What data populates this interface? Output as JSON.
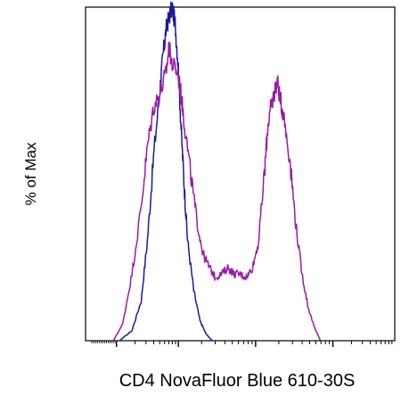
{
  "chart_data": {
    "type": "histogram",
    "title": "",
    "xlabel": "CD4 NovaFluor Blue 610-30S",
    "ylabel": "% of Max",
    "xlim": [
      0,
      1
    ],
    "ylim": [
      0,
      100
    ],
    "x_scale": "biexponential",
    "x_tick_labels": [],
    "y_tick_labels": [],
    "grid": false,
    "legend": "none",
    "series": [
      {
        "color": "#1a1a9a",
        "x": [
          0.11,
          0.15,
          0.18,
          0.2,
          0.22,
          0.24,
          0.25,
          0.26,
          0.27,
          0.28,
          0.29,
          0.3,
          0.31,
          0.32,
          0.33,
          0.35,
          0.37,
          0.39,
          0.41
        ],
        "y": [
          0,
          3,
          12,
          30,
          55,
          75,
          85,
          93,
          97,
          100,
          95,
          82,
          62,
          45,
          30,
          15,
          6,
          2,
          0
        ]
      },
      {
        "color": "#9a1aa6",
        "x": [
          0.09,
          0.12,
          0.15,
          0.18,
          0.2,
          0.22,
          0.24,
          0.26,
          0.27,
          0.28,
          0.3,
          0.31,
          0.32,
          0.34,
          0.36,
          0.38,
          0.4,
          0.42,
          0.44,
          0.46,
          0.48,
          0.5,
          0.52,
          0.54,
          0.56,
          0.58,
          0.59,
          0.6,
          0.61,
          0.62,
          0.63,
          0.64,
          0.66,
          0.68,
          0.7,
          0.72,
          0.74,
          0.75,
          0.76
        ],
        "y": [
          0,
          5,
          20,
          40,
          58,
          70,
          74,
          80,
          88,
          83,
          80,
          73,
          65,
          50,
          36,
          26,
          22,
          19,
          20,
          22,
          20,
          20,
          19,
          22,
          30,
          52,
          65,
          70,
          74,
          78,
          72,
          68,
          55,
          35,
          20,
          10,
          4,
          2,
          0
        ]
      }
    ]
  }
}
